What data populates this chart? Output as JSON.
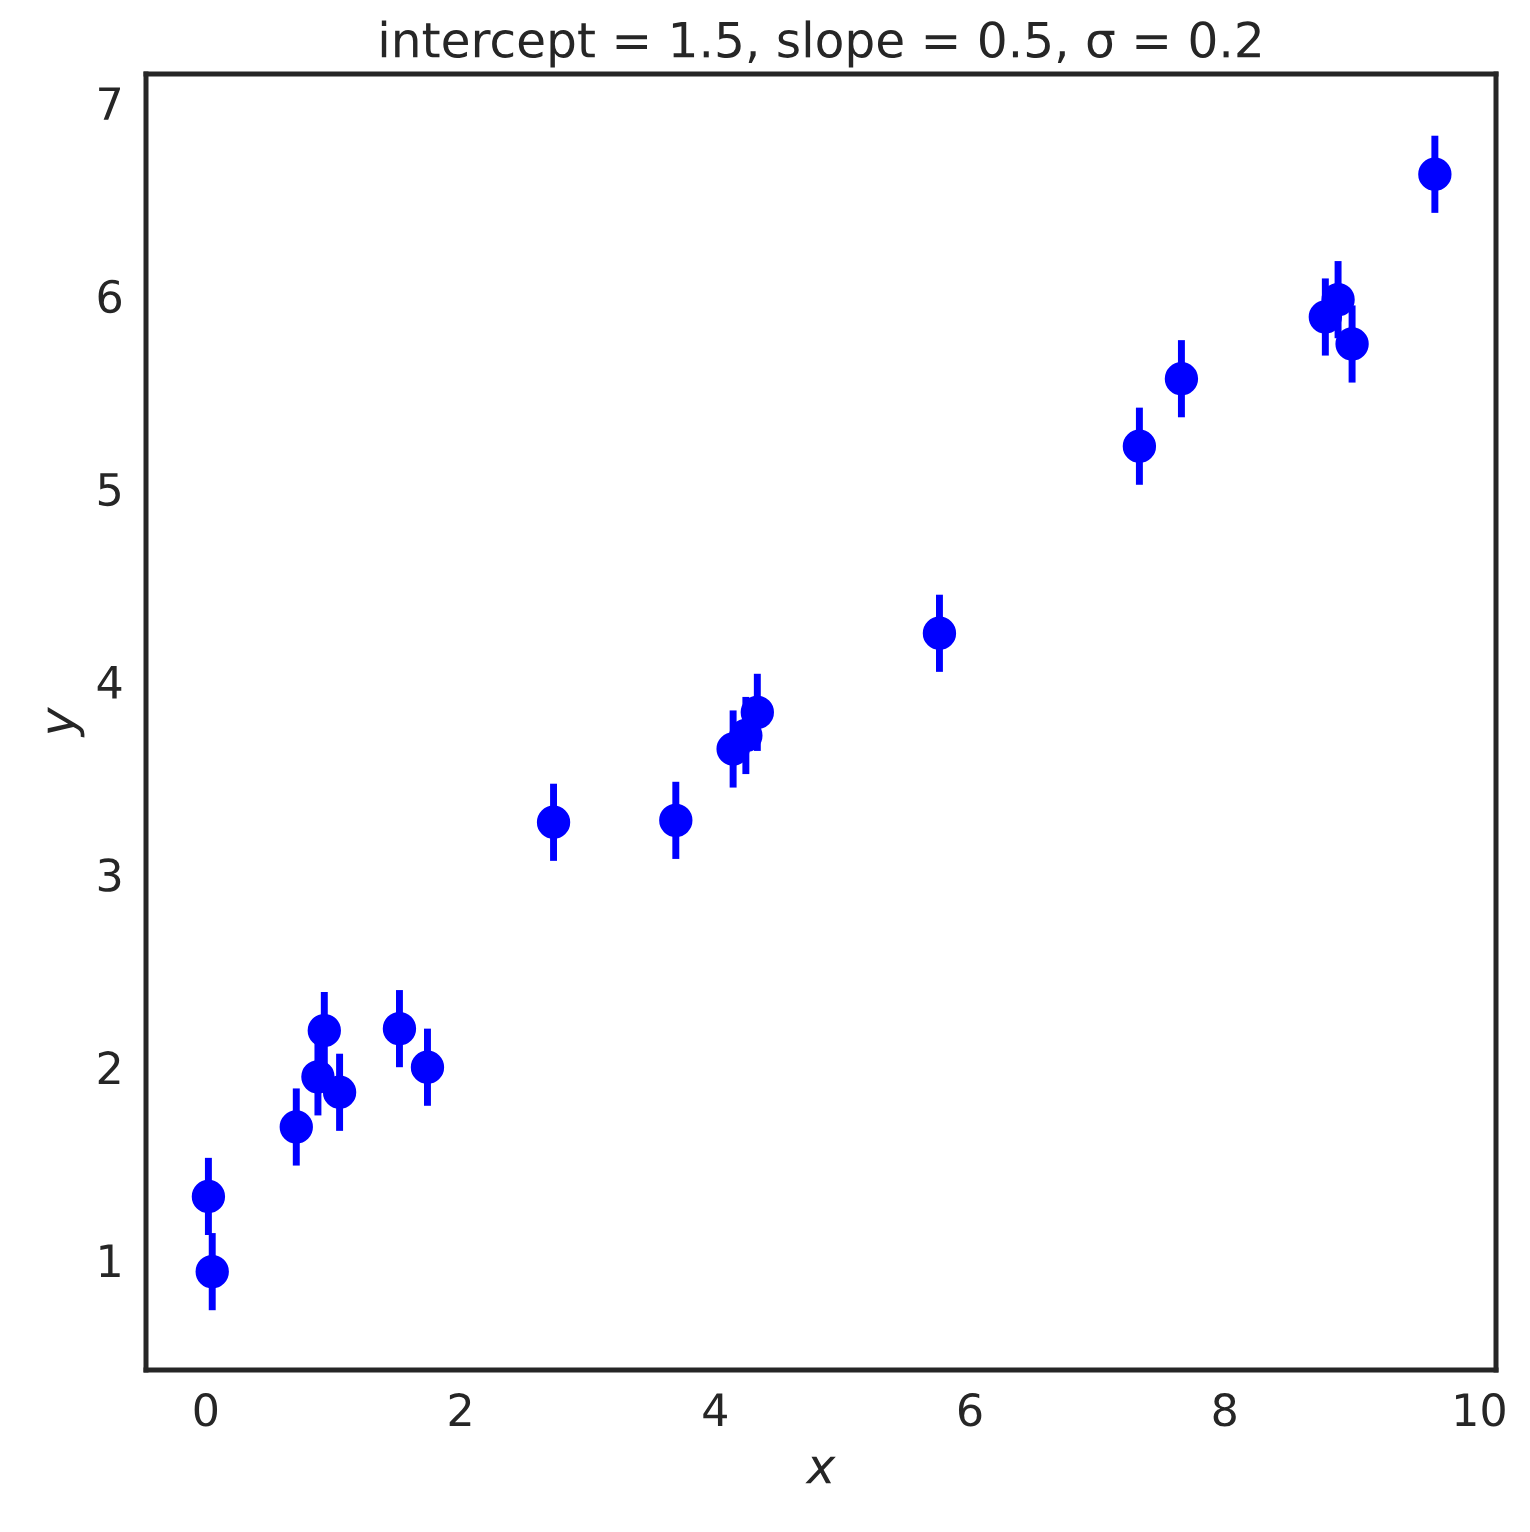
{
  "chart_data": {
    "type": "scatter",
    "title": "intercept = 1.5, slope = 0.5, σ = 0.2",
    "xlabel": "x",
    "ylabel": "y",
    "x": [
      0.02,
      0.05,
      0.71,
      0.88,
      0.93,
      1.05,
      1.52,
      1.74,
      2.73,
      3.69,
      4.14,
      4.24,
      4.33,
      5.76,
      7.33,
      7.66,
      8.79,
      8.89,
      9.0,
      9.65
    ],
    "series": [
      {
        "color": "#0000ff",
        "values": [
          1.33,
          0.94,
          1.69,
          1.95,
          2.19,
          1.87,
          2.2,
          2.0,
          3.27,
          3.28,
          3.65,
          3.72,
          3.84,
          4.25,
          5.22,
          5.57,
          5.89,
          5.98,
          5.75,
          6.63
        ],
        "errors": [
          0.2,
          0.2,
          0.2,
          0.2,
          0.2,
          0.2,
          0.2,
          0.2,
          0.2,
          0.2,
          0.2,
          0.2,
          0.2,
          0.2,
          0.2,
          0.2,
          0.2,
          0.2,
          0.2,
          0.2
        ]
      }
    ],
    "xlim": [
      -0.47,
      10.13
    ],
    "ylim": [
      0.43,
      7.15
    ],
    "xticks": [
      0,
      2,
      4,
      6,
      8,
      10
    ],
    "yticks": [
      1,
      2,
      3,
      4,
      5,
      6,
      7
    ],
    "marker": "circle",
    "grid": false,
    "legend": false
  }
}
